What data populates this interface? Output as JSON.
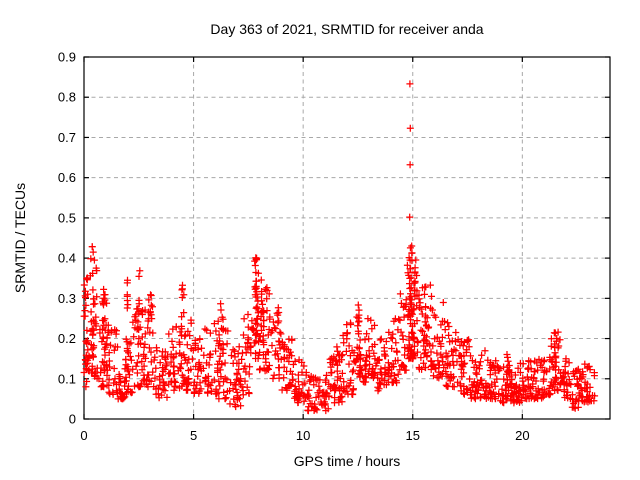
{
  "chart_data": {
    "type": "scatter",
    "title": "Day 363 of 2021, SRMTID for receiver anda",
    "xlabel": "GPS time / hours",
    "ylabel": "SRMTID / TECUs",
    "xlim": [
      0,
      24
    ],
    "ylim": [
      0,
      0.9
    ],
    "x_tick_values": [
      0,
      5,
      10,
      15,
      20
    ],
    "x_tick_labels": [
      "0",
      "5",
      "10",
      "15",
      "20"
    ],
    "y_tick_values": [
      0,
      0.1,
      0.2,
      0.3,
      0.4,
      0.5,
      0.6,
      0.7,
      0.8,
      0.9
    ],
    "y_tick_labels": [
      "0",
      "0.1",
      "0.2",
      "0.3",
      "0.4",
      "0.5",
      "0.6",
      "0.7",
      "0.8",
      "0.9"
    ],
    "grid": {
      "show": true,
      "style": "dashed",
      "color": "#a8a8a8"
    },
    "marker": {
      "shape": "plus",
      "color": "#ff0000",
      "size": 7
    },
    "border_color": "#000000",
    "background_color": "#ffffff",
    "series_name": "SRMTID",
    "outlier_points": [
      [
        14.87,
        0.833
      ],
      [
        14.89,
        0.723
      ],
      [
        14.88,
        0.632
      ],
      [
        14.86,
        0.502
      ],
      [
        14.95,
        0.43
      ],
      [
        0.38,
        0.428
      ],
      [
        0.42,
        0.415
      ],
      [
        7.84,
        0.401
      ],
      [
        7.87,
        0.396
      ]
    ],
    "envelope_bands": [
      [
        0.0,
        0.3,
        0.08,
        0.37,
        24
      ],
      [
        0.3,
        0.7,
        0.1,
        0.4,
        28
      ],
      [
        0.7,
        1.1,
        0.08,
        0.32,
        26
      ],
      [
        1.1,
        1.5,
        0.06,
        0.26,
        24
      ],
      [
        1.5,
        1.9,
        0.05,
        0.2,
        24
      ],
      [
        1.9,
        2.3,
        0.06,
        0.28,
        24
      ],
      [
        2.3,
        2.7,
        0.08,
        0.3,
        24
      ],
      [
        2.7,
        3.2,
        0.08,
        0.3,
        28
      ],
      [
        3.2,
        3.8,
        0.05,
        0.18,
        34
      ],
      [
        3.8,
        4.4,
        0.07,
        0.24,
        34
      ],
      [
        4.4,
        5.0,
        0.07,
        0.26,
        34
      ],
      [
        5.0,
        5.5,
        0.06,
        0.22,
        30
      ],
      [
        5.5,
        6.1,
        0.06,
        0.24,
        34
      ],
      [
        6.1,
        6.6,
        0.05,
        0.26,
        30
      ],
      [
        6.6,
        7.2,
        0.03,
        0.18,
        34
      ],
      [
        7.2,
        7.7,
        0.06,
        0.26,
        30
      ],
      [
        7.7,
        8.0,
        0.15,
        0.38,
        20
      ],
      [
        8.0,
        8.5,
        0.12,
        0.33,
        30
      ],
      [
        8.5,
        9.0,
        0.1,
        0.28,
        30
      ],
      [
        9.0,
        9.6,
        0.07,
        0.2,
        34
      ],
      [
        9.6,
        10.2,
        0.04,
        0.15,
        34
      ],
      [
        10.2,
        11.2,
        0.02,
        0.11,
        56
      ],
      [
        11.2,
        11.8,
        0.04,
        0.16,
        34
      ],
      [
        11.8,
        12.4,
        0.06,
        0.24,
        34
      ],
      [
        12.4,
        13.0,
        0.09,
        0.27,
        36
      ],
      [
        13.0,
        13.4,
        0.1,
        0.26,
        26
      ],
      [
        13.4,
        13.9,
        0.07,
        0.2,
        30
      ],
      [
        13.9,
        14.4,
        0.09,
        0.26,
        30
      ],
      [
        14.4,
        14.75,
        0.12,
        0.32,
        22
      ],
      [
        14.75,
        15.2,
        0.15,
        0.4,
        34
      ],
      [
        15.2,
        15.9,
        0.12,
        0.34,
        40
      ],
      [
        15.9,
        16.4,
        0.1,
        0.3,
        30
      ],
      [
        16.4,
        17.0,
        0.08,
        0.26,
        36
      ],
      [
        17.0,
        17.6,
        0.06,
        0.2,
        36
      ],
      [
        17.6,
        18.3,
        0.05,
        0.17,
        40
      ],
      [
        18.3,
        19.0,
        0.05,
        0.15,
        40
      ],
      [
        19.0,
        20.0,
        0.04,
        0.14,
        60
      ],
      [
        20.0,
        21.0,
        0.05,
        0.15,
        60
      ],
      [
        21.0,
        21.3,
        0.06,
        0.16,
        18
      ],
      [
        21.3,
        21.8,
        0.07,
        0.22,
        30
      ],
      [
        21.8,
        22.2,
        0.05,
        0.15,
        24
      ],
      [
        22.2,
        22.7,
        0.025,
        0.13,
        30
      ],
      [
        22.7,
        23.3,
        0.04,
        0.14,
        36
      ]
    ],
    "spike_columns": [
      [
        0.08,
        0.12,
        0.37,
        12
      ],
      [
        0.38,
        0.15,
        0.43,
        14
      ],
      [
        0.9,
        0.12,
        0.34,
        10
      ],
      [
        1.0,
        0.1,
        0.31,
        10
      ],
      [
        1.97,
        0.1,
        0.37,
        12
      ],
      [
        2.5,
        0.12,
        0.37,
        12
      ],
      [
        3.0,
        0.1,
        0.34,
        10
      ],
      [
        4.5,
        0.1,
        0.34,
        12
      ],
      [
        6.3,
        0.07,
        0.3,
        10
      ],
      [
        7.85,
        0.18,
        0.405,
        22
      ],
      [
        8.15,
        0.15,
        0.35,
        16
      ],
      [
        11.6,
        0.05,
        0.18,
        8
      ],
      [
        12.55,
        0.1,
        0.285,
        12
      ],
      [
        14.9,
        0.15,
        0.43,
        30
      ],
      [
        15.05,
        0.15,
        0.38,
        18
      ],
      [
        15.6,
        0.15,
        0.33,
        14
      ],
      [
        19.35,
        0.05,
        0.17,
        8
      ],
      [
        20.3,
        0.05,
        0.16,
        8
      ],
      [
        21.5,
        0.08,
        0.215,
        14
      ]
    ]
  }
}
